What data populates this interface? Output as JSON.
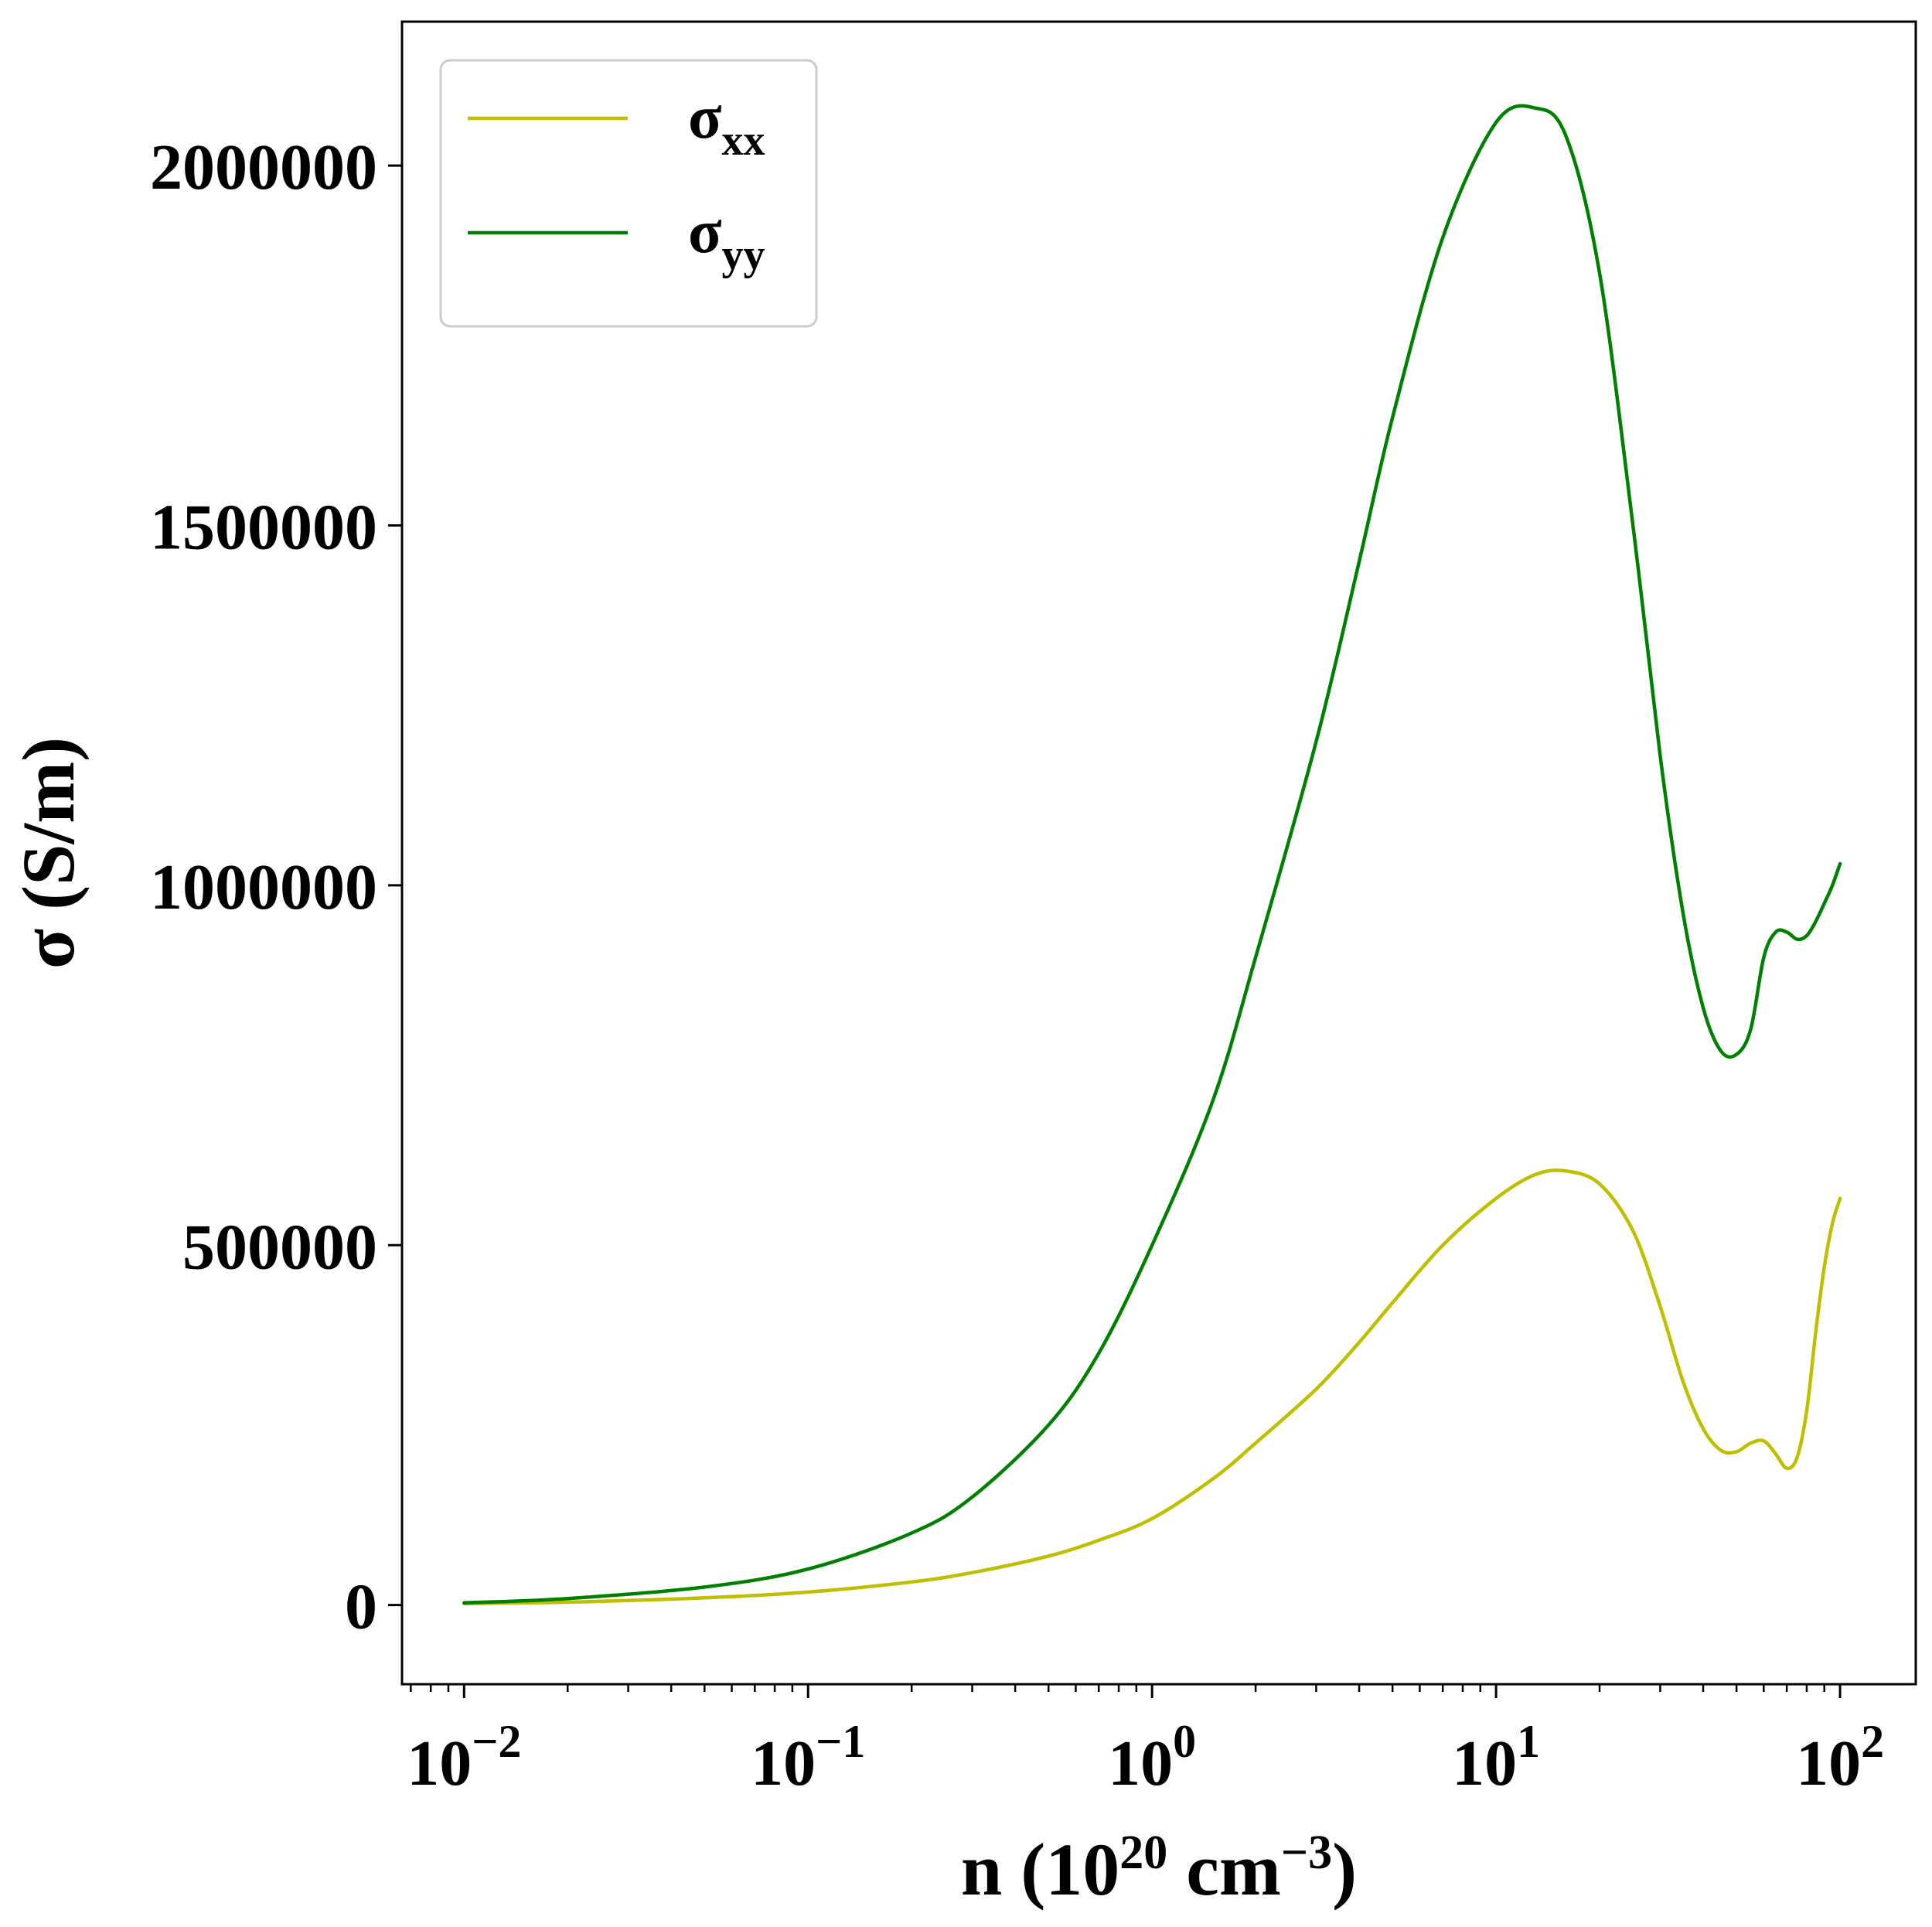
{
  "chart_data": {
    "type": "line",
    "xscale": "log",
    "xlabel": {
      "base": "n (10",
      "exp1": "20",
      "mid": " cm",
      "exp2": "−3",
      "end": ")"
    },
    "ylabel": "σ (S/m)",
    "xlim": [
      0.0066,
      166
    ],
    "ylim": [
      -110000,
      2200000
    ],
    "xticks": [
      {
        "value": 0.01,
        "base": "10",
        "exp": "−2"
      },
      {
        "value": 0.1,
        "base": "10",
        "exp": "−1"
      },
      {
        "value": 1,
        "base": "10",
        "exp": "0"
      },
      {
        "value": 10,
        "base": "10",
        "exp": "1"
      },
      {
        "value": 100,
        "base": "10",
        "exp": "2"
      }
    ],
    "yticks": [
      {
        "value": 0,
        "label": "0"
      },
      {
        "value": 500000,
        "label": "500000"
      },
      {
        "value": 1000000,
        "label": "1000000"
      },
      {
        "value": 1500000,
        "label": "1500000"
      },
      {
        "value": 2000000,
        "label": "2000000"
      }
    ],
    "grid": false,
    "legend_position": "upper-left",
    "series": [
      {
        "name": "σ",
        "name_sub": "xx",
        "color": "#bfbf00",
        "x": [
          0.01,
          0.02,
          0.05,
          0.1,
          0.2,
          0.3,
          0.5,
          0.7,
          1.0,
          1.5,
          2.0,
          3.0,
          4.0,
          5.0,
          7.0,
          10.0,
          13.0,
          16.0,
          20.0,
          25.0,
          30.0,
          35.0,
          40.0,
          45.0,
          50.0,
          55.0,
          60.0,
          65.0,
          70.0,
          75.0,
          80.0,
          85.0,
          90.0,
          95.0,
          100.0
        ],
        "y": [
          2000,
          4000,
          10000,
          18000,
          32000,
          45000,
          68000,
          90000,
          120000,
          175000,
          225000,
          300000,
          365000,
          420000,
          500000,
          565000,
          598000,
          603000,
          585000,
          520000,
          415000,
          310000,
          245000,
          215000,
          213000,
          225000,
          228000,
          210000,
          190000,
          205000,
          270000,
          380000,
          470000,
          530000,
          565000
        ]
      },
      {
        "name": "σ",
        "name_sub": "yy",
        "color": "#008000",
        "x": [
          0.01,
          0.02,
          0.05,
          0.1,
          0.2,
          0.3,
          0.5,
          0.7,
          1.0,
          1.5,
          2.0,
          3.0,
          4.0,
          5.0,
          7.0,
          10.0,
          13.0,
          16.0,
          20.0,
          25.0,
          30.0,
          35.0,
          40.0,
          45.0,
          50.0,
          55.0,
          60.0,
          65.0,
          70.0,
          75.0,
          80.0,
          85.0,
          90.0,
          95.0,
          100.0
        ],
        "y": [
          3000,
          9000,
          25000,
          50000,
          100000,
          150000,
          250000,
          350000,
          500000,
          700000,
          900000,
          1200000,
          1450000,
          1650000,
          1900000,
          2060000,
          2080000,
          2040000,
          1850000,
          1500000,
          1180000,
          960000,
          830000,
          770000,
          765000,
          800000,
          900000,
          935000,
          935000,
          925000,
          930000,
          950000,
          975000,
          1000000,
          1030000
        ]
      }
    ]
  }
}
